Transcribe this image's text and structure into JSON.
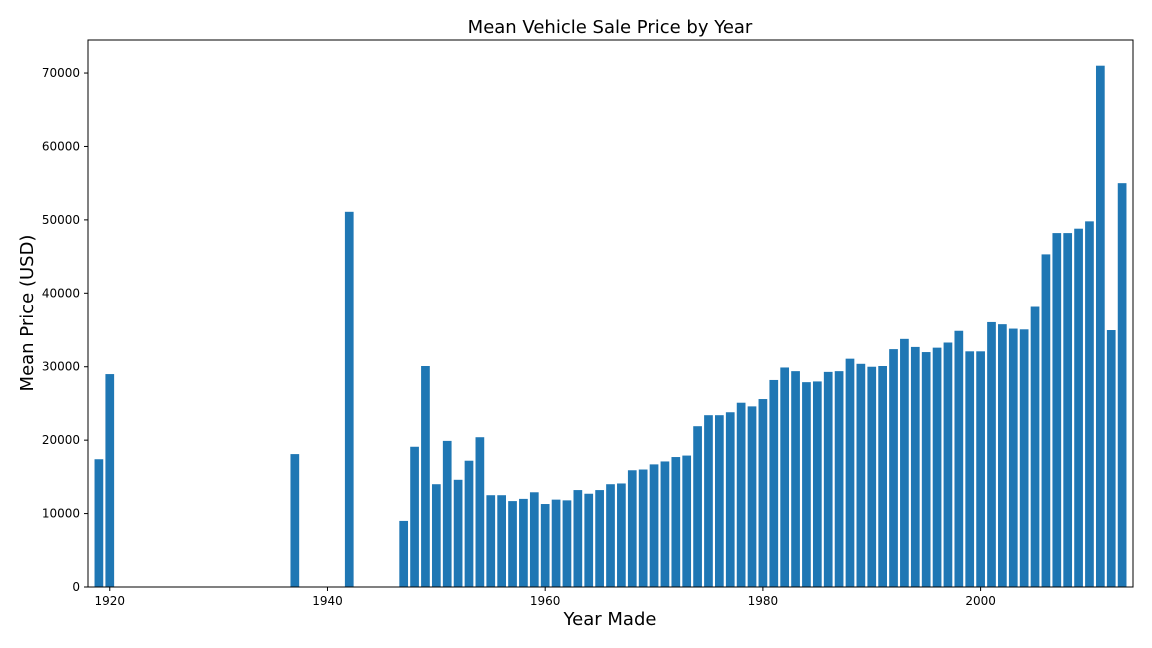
{
  "chart_data": {
    "type": "bar",
    "title": "Mean Vehicle Sale Price by Year",
    "xlabel": "Year Made",
    "ylabel": "Mean Price (USD)",
    "xlim": [
      1918,
      2014
    ],
    "ylim": [
      0,
      74500
    ],
    "xticks": [
      1920,
      1940,
      1960,
      1980,
      2000
    ],
    "yticks": [
      0,
      10000,
      20000,
      30000,
      40000,
      50000,
      60000,
      70000
    ],
    "grid": false,
    "bar_color": "#1f77b4",
    "x": [
      1919,
      1920,
      1937,
      1942,
      1947,
      1948,
      1949,
      1950,
      1951,
      1952,
      1953,
      1954,
      1955,
      1956,
      1957,
      1958,
      1959,
      1960,
      1961,
      1962,
      1963,
      1964,
      1965,
      1966,
      1967,
      1968,
      1969,
      1970,
      1971,
      1972,
      1973,
      1974,
      1975,
      1976,
      1977,
      1978,
      1979,
      1980,
      1981,
      1982,
      1983,
      1984,
      1985,
      1986,
      1987,
      1988,
      1989,
      1990,
      1991,
      1992,
      1993,
      1994,
      1995,
      1996,
      1997,
      1998,
      1999,
      2000,
      2001,
      2002,
      2003,
      2004,
      2005,
      2006,
      2007,
      2008,
      2009,
      2010,
      2011,
      2012,
      2013
    ],
    "values": [
      17400,
      29000,
      18100,
      51100,
      9000,
      19100,
      30100,
      14000,
      19900,
      14600,
      17200,
      20400,
      12500,
      12500,
      11700,
      12000,
      12900,
      11300,
      11900,
      11800,
      13200,
      12700,
      13200,
      14000,
      14100,
      15900,
      16000,
      16700,
      17100,
      17700,
      17900,
      21900,
      23400,
      23400,
      23800,
      25100,
      24600,
      25600,
      28200,
      29900,
      29400,
      27900,
      28000,
      29300,
      29400,
      31100,
      30400,
      30000,
      30100,
      32400,
      33800,
      32700,
      32000,
      32600,
      33300,
      34900,
      32100,
      32100,
      36100,
      35800,
      35200,
      35100,
      38200,
      45300,
      48200,
      48200,
      48800,
      49800,
      71000,
      35000,
      55000
    ]
  }
}
